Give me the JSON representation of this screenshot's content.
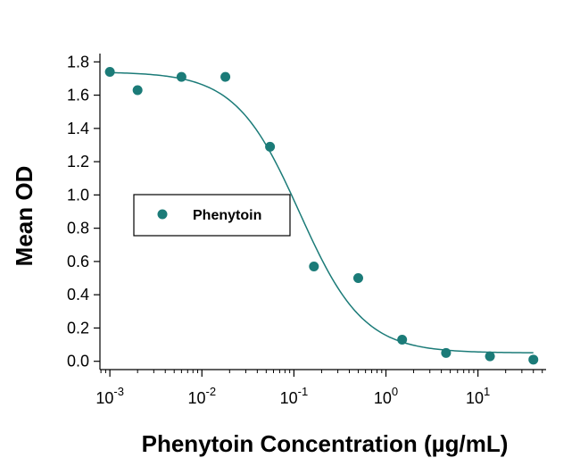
{
  "chart_data": {
    "type": "scatter",
    "xlabel": "Phenytoin Concentration (µg/mL)",
    "ylabel": "Mean OD",
    "x_scale": "log",
    "xlim": [
      0.00078,
      55
    ],
    "ylim": [
      -0.05,
      1.85
    ],
    "x_ticks": [
      {
        "base": "10",
        "exp": "-3",
        "value": 0.001
      },
      {
        "base": "10",
        "exp": "-2",
        "value": 0.01
      },
      {
        "base": "10",
        "exp": "-1",
        "value": 0.1
      },
      {
        "base": "10",
        "exp": "0",
        "value": 1
      },
      {
        "base": "10",
        "exp": "1",
        "value": 10
      }
    ],
    "y_ticks": [
      "0.0",
      "0.2",
      "0.4",
      "0.6",
      "0.8",
      "1.0",
      "1.2",
      "1.4",
      "1.6",
      "1.8"
    ],
    "legend": {
      "position": "left-middle",
      "entries": [
        "Phenytoin"
      ]
    },
    "color": "#1b7b78",
    "series": [
      {
        "name": "Phenytoin",
        "points": [
          {
            "x": 0.001,
            "y": 1.74
          },
          {
            "x": 0.002,
            "y": 1.63
          },
          {
            "x": 0.006,
            "y": 1.71
          },
          {
            "x": 0.018,
            "y": 1.71
          },
          {
            "x": 0.055,
            "y": 1.29
          },
          {
            "x": 0.165,
            "y": 0.57
          },
          {
            "x": 0.5,
            "y": 0.5
          },
          {
            "x": 1.5,
            "y": 0.13
          },
          {
            "x": 4.5,
            "y": 0.05
          },
          {
            "x": 13.5,
            "y": 0.03
          },
          {
            "x": 40,
            "y": 0.01
          }
        ],
        "fit": {
          "type": "4PL",
          "top": 1.74,
          "bottom": 0.05,
          "ec50": 0.115,
          "hill": 1.25
        }
      }
    ]
  }
}
